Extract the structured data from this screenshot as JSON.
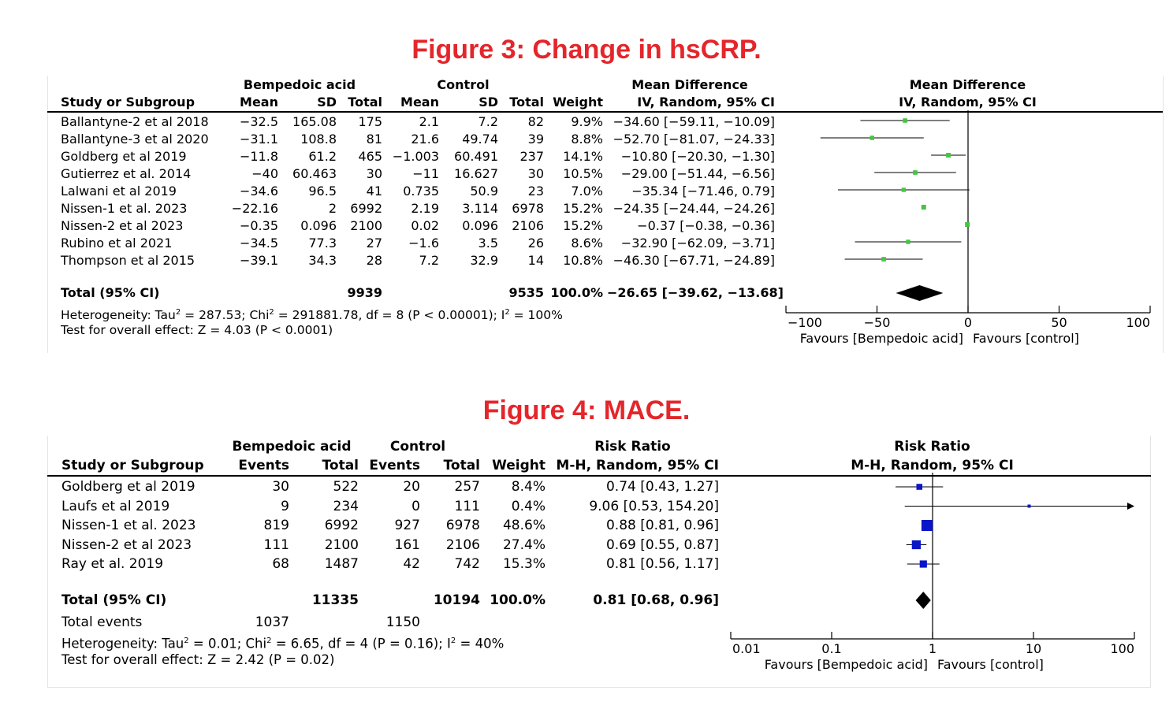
{
  "figure3": {
    "title": "Figure 3: Change in hsCRP.",
    "headers": {
      "group1": "Bempedoic acid",
      "group2": "Control",
      "effect_group": "Mean Difference",
      "effect_method": "IV, Random, 95% CI",
      "plot_group": "Mean Difference",
      "plot_method": "IV, Random, 95% CI",
      "study": "Study or Subgroup",
      "mean1": "Mean",
      "sd1": "SD",
      "total1": "Total",
      "mean2": "Mean",
      "sd2": "SD",
      "total2": "Total",
      "weight": "Weight"
    },
    "rows": [
      {
        "study": "Ballantyne-2 et al 2018",
        "mean1": "−32.5",
        "sd1": "165.08",
        "total1": "175",
        "mean2": "2.1",
        "sd2": "7.2",
        "total2": "82",
        "weight": "9.9%",
        "ci": "−34.60 [−59.11, −10.09]"
      },
      {
        "study": "Ballantyne-3 et al 2020",
        "mean1": "−31.1",
        "sd1": "108.8",
        "total1": "81",
        "mean2": "21.6",
        "sd2": "49.74",
        "total2": "39",
        "weight": "8.8%",
        "ci": "−52.70 [−81.07, −24.33]"
      },
      {
        "study": "Goldberg et al 2019",
        "mean1": "−11.8",
        "sd1": "61.2",
        "total1": "465",
        "mean2": "−1.003",
        "sd2": "60.491",
        "total2": "237",
        "weight": "14.1%",
        "ci": "−10.80 [−20.30, −1.30]"
      },
      {
        "study": "Gutierrez et al. 2014",
        "mean1": "−40",
        "sd1": "60.463",
        "total1": "30",
        "mean2": "−11",
        "sd2": "16.627",
        "total2": "30",
        "weight": "10.5%",
        "ci": "−29.00 [−51.44, −6.56]"
      },
      {
        "study": "Lalwani et al 2019",
        "mean1": "−34.6",
        "sd1": "96.5",
        "total1": "41",
        "mean2": "0.735",
        "sd2": "50.9",
        "total2": "23",
        "weight": "7.0%",
        "ci": "−35.34 [−71.46, 0.79]"
      },
      {
        "study": "Nissen-1 et al. 2023",
        "mean1": "−22.16",
        "sd1": "2",
        "total1": "6992",
        "mean2": "2.19",
        "sd2": "3.114",
        "total2": "6978",
        "weight": "15.2%",
        "ci": "−24.35 [−24.44, −24.26]"
      },
      {
        "study": "Nissen-2 et al 2023",
        "mean1": "−0.35",
        "sd1": "0.096",
        "total1": "2100",
        "mean2": "0.02",
        "sd2": "0.096",
        "total2": "2106",
        "weight": "15.2%",
        "ci": "−0.37 [−0.38, −0.36]"
      },
      {
        "study": "Rubino et al 2021",
        "mean1": "−34.5",
        "sd1": "77.3",
        "total1": "27",
        "mean2": "−1.6",
        "sd2": "3.5",
        "total2": "26",
        "weight": "8.6%",
        "ci": "−32.90 [−62.09, −3.71]"
      },
      {
        "study": "Thompson et al 2015",
        "mean1": "−39.1",
        "sd1": "34.3",
        "total1": "28",
        "mean2": "7.2",
        "sd2": "32.9",
        "total2": "14",
        "weight": "10.8%",
        "ci": "−46.30 [−67.71, −24.89]"
      }
    ],
    "total": {
      "label": "Total (95% CI)",
      "total1": "9939",
      "total2": "9535",
      "weight": "100.0%",
      "ci": "−26.65 [−39.62, −13.68]"
    },
    "heterogeneity_prefix": "Heterogeneity: Tau",
    "heterogeneity_tau_value": " = 287.53; Chi",
    "heterogeneity_chi_value": " = 291881.78, df = 8 (P < 0.00001); I",
    "heterogeneity_i2_value": " = 100%",
    "overall_effect": "Test for overall effect: Z = 4.03 (P < 0.0001)",
    "sup2": "2"
  },
  "figure4": {
    "title": "Figure 4: MACE.",
    "headers": {
      "group1": "Bempedoic acid",
      "group2": "Control",
      "effect_group": "Risk Ratio",
      "effect_method": "M-H, Random, 95% CI",
      "plot_group": "Risk Ratio",
      "plot_method": "M-H, Random, 95% CI",
      "study": "Study or Subgroup",
      "events1": "Events",
      "total1": "Total",
      "events2": "Events",
      "total2": "Total",
      "weight": "Weight"
    },
    "rows": [
      {
        "study": "Goldberg et al 2019",
        "events1": "30",
        "total1": "522",
        "events2": "20",
        "total2": "257",
        "weight": "8.4%",
        "ci": "0.74 [0.43, 1.27]"
      },
      {
        "study": "Laufs et al 2019",
        "events1": "9",
        "total1": "234",
        "events2": "0",
        "total2": "111",
        "weight": "0.4%",
        "ci": "9.06 [0.53, 154.20]"
      },
      {
        "study": "Nissen-1 et al. 2023",
        "events1": "819",
        "total1": "6992",
        "events2": "927",
        "total2": "6978",
        "weight": "48.6%",
        "ci": "0.88 [0.81, 0.96]"
      },
      {
        "study": "Nissen-2 et al 2023",
        "events1": "111",
        "total1": "2100",
        "events2": "161",
        "total2": "2106",
        "weight": "27.4%",
        "ci": "0.69 [0.55, 0.87]"
      },
      {
        "study": "Ray et al. 2019",
        "events1": "68",
        "total1": "1487",
        "events2": "42",
        "total2": "742",
        "weight": "15.3%",
        "ci": "0.81 [0.56, 1.17]"
      }
    ],
    "total": {
      "label": "Total (95% CI)",
      "total1": "11335",
      "total2": "10194",
      "weight": "100.0%",
      "ci": "0.81 [0.68, 0.96]"
    },
    "total_events": {
      "label": "Total events",
      "events1": "1037",
      "events2": "1150"
    },
    "heterogeneity_prefix": "Heterogeneity: Tau",
    "heterogeneity_tau_value": " = 0.01; Chi",
    "heterogeneity_chi_value": " = 6.65, df = 4 (P = 0.16); I",
    "heterogeneity_i2_value": " = 40%",
    "overall_effect": "Test for overall effect: Z = 2.42 (P = 0.02)",
    "sup2": "2"
  },
  "chart_data": [
    {
      "type": "scatter",
      "title": "Figure 3: Change in hsCRP.",
      "subtype": "forest",
      "scale": "linear",
      "xlim": [
        -100,
        100
      ],
      "ticks": [
        -100,
        -50,
        0,
        50,
        100
      ],
      "tick_labels": [
        "−100",
        "−50",
        "0",
        "50",
        "100"
      ],
      "xlabel_left": "Favours [Bempedoic acid]",
      "xlabel_right": "Favours [control]",
      "marker_color": "#44c542",
      "estimates": [
        {
          "point": -34.6,
          "lo": -59.11,
          "hi": -10.09,
          "weight": 9.9
        },
        {
          "point": -52.7,
          "lo": -81.07,
          "hi": -24.33,
          "weight": 8.8
        },
        {
          "point": -10.8,
          "lo": -20.3,
          "hi": -1.3,
          "weight": 14.1
        },
        {
          "point": -29.0,
          "lo": -51.44,
          "hi": -6.56,
          "weight": 10.5
        },
        {
          "point": -35.34,
          "lo": -71.46,
          "hi": 0.79,
          "weight": 7.0
        },
        {
          "point": -24.35,
          "lo": -24.44,
          "hi": -24.26,
          "weight": 15.2
        },
        {
          "point": -0.37,
          "lo": -0.38,
          "hi": -0.36,
          "weight": 15.2
        },
        {
          "point": -32.9,
          "lo": -62.09,
          "hi": -3.71,
          "weight": 8.6
        },
        {
          "point": -46.3,
          "lo": -67.71,
          "hi": -24.89,
          "weight": 10.8
        }
      ],
      "pooled": {
        "point": -26.65,
        "lo": -39.62,
        "hi": -13.68
      }
    },
    {
      "type": "scatter",
      "title": "Figure 4: MACE.",
      "subtype": "forest",
      "scale": "log",
      "xlim": [
        0.01,
        100
      ],
      "ticks": [
        0.01,
        0.1,
        1,
        10,
        100
      ],
      "tick_labels": [
        "0.01",
        "0.1",
        "1",
        "10",
        "100"
      ],
      "xlabel_left": "Favours [Bempedoic acid]",
      "xlabel_right": "Favours [control]",
      "marker_color": "#0a17c8",
      "estimates": [
        {
          "point": 0.74,
          "lo": 0.43,
          "hi": 1.27,
          "weight": 8.4
        },
        {
          "point": 9.06,
          "lo": 0.53,
          "hi": 154.2,
          "weight": 0.4
        },
        {
          "point": 0.88,
          "lo": 0.81,
          "hi": 0.96,
          "weight": 48.6
        },
        {
          "point": 0.69,
          "lo": 0.55,
          "hi": 0.87,
          "weight": 27.4
        },
        {
          "point": 0.81,
          "lo": 0.56,
          "hi": 1.17,
          "weight": 15.3
        }
      ],
      "pooled": {
        "point": 0.81,
        "lo": 0.68,
        "hi": 0.96
      }
    }
  ]
}
